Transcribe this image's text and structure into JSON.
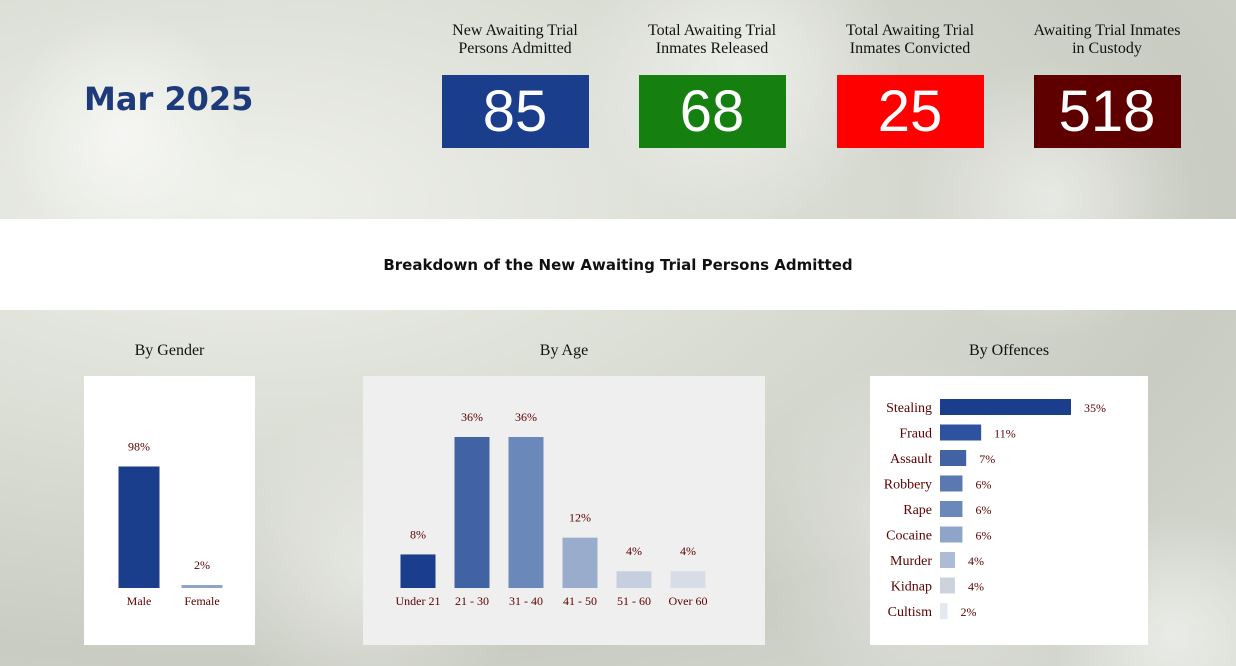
{
  "month": "Mar 2025",
  "kpis": [
    {
      "label_line1": "New Awaiting Trial",
      "label_line2": "Persons Admitted",
      "value": "85",
      "color": "#1a3d8c"
    },
    {
      "label_line1": "Total Awaiting Trial",
      "label_line2": "Inmates Released",
      "value": "68",
      "color": "#158010"
    },
    {
      "label_line1": "Total Awaiting Trial",
      "label_line2": "Inmates Convicted",
      "value": "25",
      "color": "#ff0000"
    },
    {
      "label_line1": "Awaiting Trial Inmates",
      "label_line2": "in Custody",
      "value": "518",
      "color": "#5e0000"
    }
  ],
  "section_title": "Breakdown of the New Awaiting Trial Persons Admitted",
  "panels": {
    "gender_title": "By Gender",
    "age_title": "By Age",
    "offence_title": "By Offences"
  },
  "chart_data": [
    {
      "type": "bar",
      "title": "By Gender",
      "categories": [
        "Male",
        "Female"
      ],
      "values": [
        98,
        2
      ],
      "labels": [
        "98%",
        "2%"
      ],
      "colors": [
        "#1a3d8c",
        "#8fa5c7"
      ],
      "ylim": [
        0,
        100
      ]
    },
    {
      "type": "bar",
      "title": "By Age",
      "categories": [
        "Under 21",
        "21 - 30",
        "31 - 40",
        "41 - 50",
        "51 - 60",
        "Over 60"
      ],
      "values": [
        8,
        36,
        36,
        12,
        4,
        4
      ],
      "labels": [
        "8%",
        "36%",
        "36%",
        "12%",
        "4%",
        "4%"
      ],
      "colors": [
        "#1a3d8c",
        "#4263a3",
        "#6b88ba",
        "#9aaccb",
        "#c6cfe0",
        "#d7dce6"
      ],
      "ylim": [
        0,
        36
      ]
    },
    {
      "type": "bar",
      "orientation": "horizontal",
      "title": "By Offences",
      "categories": [
        "Stealing",
        "Fraud",
        "Assault",
        "Robbery",
        "Rape",
        "Cocaine",
        "Murder",
        "Kidnap",
        "Cultism"
      ],
      "values": [
        35,
        11,
        7,
        6,
        6,
        6,
        4,
        4,
        2
      ],
      "labels": [
        "35%",
        "11%",
        "7%",
        "6%",
        "6%",
        "6%",
        "4%",
        "4%",
        "2%"
      ],
      "colors": [
        "#1a3d8c",
        "#2f52a0",
        "#4263a3",
        "#5a78b2",
        "#6b88ba",
        "#8fa5c7",
        "#aebbd4",
        "#cdd3dc",
        "#e4e8f1"
      ],
      "xlim": [
        0,
        35
      ]
    }
  ]
}
